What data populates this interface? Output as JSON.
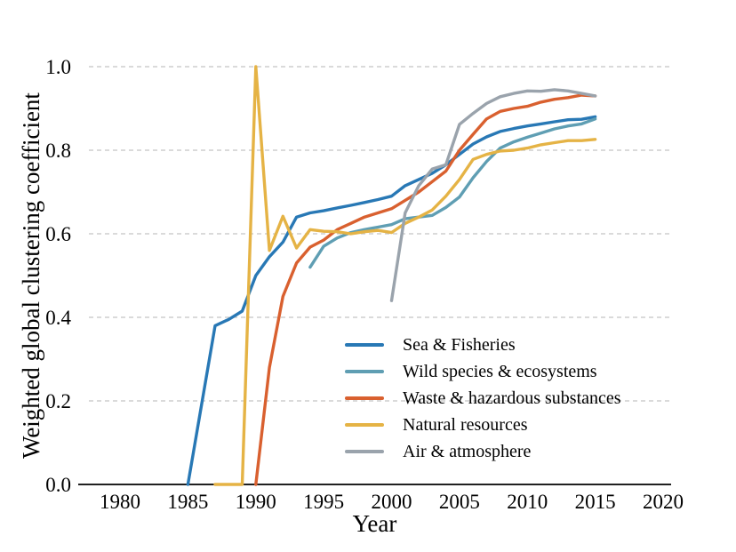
{
  "figure": {
    "background": "#ffffff"
  },
  "chart_data": {
    "type": "line",
    "title": "",
    "xlabel": "Year",
    "ylabel": "Weighted global clustering coefficient",
    "x_ticks": [
      1980,
      1985,
      1990,
      1995,
      2000,
      2005,
      2010,
      2015,
      2020
    ],
    "y_ticks": [
      0.0,
      0.2,
      0.4,
      0.6,
      0.8,
      1.0
    ],
    "y_tick_labels": [
      "0.0",
      "0.2",
      "0.4",
      "0.6",
      "0.8",
      "1.0"
    ],
    "xlim": [
      1976.92,
      2020.59
    ],
    "ylim": [
      0.0,
      1.0
    ],
    "grid": "horizontal-dashed",
    "grid_color": "#c4c4c4",
    "legend_position": "lower-right-inside",
    "series": [
      {
        "id": "sea-fisheries",
        "name": "Sea & Fisheries",
        "color": "#2878b5",
        "points": [
          [
            1985,
            0.0
          ],
          [
            1986,
            0.19
          ],
          [
            1987,
            0.38
          ],
          [
            1988,
            0.395
          ],
          [
            1989,
            0.415
          ],
          [
            1990,
            0.5
          ],
          [
            1991,
            0.545
          ],
          [
            1992,
            0.58
          ],
          [
            1993,
            0.64
          ],
          [
            1994,
            0.65
          ],
          [
            1995,
            0.655
          ],
          [
            1996,
            0.662
          ],
          [
            1997,
            0.668
          ],
          [
            1998,
            0.675
          ],
          [
            1999,
            0.682
          ],
          [
            2000,
            0.69
          ],
          [
            2001,
            0.715
          ],
          [
            2002,
            0.73
          ],
          [
            2003,
            0.745
          ],
          [
            2004,
            0.765
          ],
          [
            2005,
            0.79
          ],
          [
            2006,
            0.815
          ],
          [
            2007,
            0.832
          ],
          [
            2008,
            0.845
          ],
          [
            2009,
            0.852
          ],
          [
            2010,
            0.858
          ],
          [
            2011,
            0.863
          ],
          [
            2012,
            0.868
          ],
          [
            2013,
            0.873
          ],
          [
            2014,
            0.874
          ],
          [
            2015,
            0.88
          ]
        ]
      },
      {
        "id": "wild-species-ecosystems",
        "name": "Wild species & ecosystems",
        "color": "#5f9eb3",
        "points": [
          [
            1994,
            0.52
          ],
          [
            1995,
            0.57
          ],
          [
            1996,
            0.59
          ],
          [
            1997,
            0.603
          ],
          [
            1998,
            0.61
          ],
          [
            1999,
            0.616
          ],
          [
            2000,
            0.622
          ],
          [
            2001,
            0.636
          ],
          [
            2002,
            0.64
          ],
          [
            2003,
            0.644
          ],
          [
            2004,
            0.663
          ],
          [
            2005,
            0.688
          ],
          [
            2006,
            0.734
          ],
          [
            2007,
            0.773
          ],
          [
            2008,
            0.805
          ],
          [
            2009,
            0.82
          ],
          [
            2010,
            0.831
          ],
          [
            2011,
            0.841
          ],
          [
            2012,
            0.851
          ],
          [
            2013,
            0.858
          ],
          [
            2014,
            0.863
          ],
          [
            2015,
            0.875
          ]
        ]
      },
      {
        "id": "waste-hazardous-substances",
        "name": "Waste & hazardous substances",
        "color": "#d9602f",
        "points": [
          [
            1990,
            0.0
          ],
          [
            1991,
            0.28
          ],
          [
            1992,
            0.45
          ],
          [
            1993,
            0.53
          ],
          [
            1994,
            0.568
          ],
          [
            1995,
            0.585
          ],
          [
            1996,
            0.61
          ],
          [
            1997,
            0.625
          ],
          [
            1998,
            0.64
          ],
          [
            1999,
            0.65
          ],
          [
            2000,
            0.66
          ],
          [
            2001,
            0.68
          ],
          [
            2002,
            0.7
          ],
          [
            2003,
            0.725
          ],
          [
            2004,
            0.75
          ],
          [
            2005,
            0.8
          ],
          [
            2006,
            0.838
          ],
          [
            2007,
            0.875
          ],
          [
            2008,
            0.893
          ],
          [
            2009,
            0.9
          ],
          [
            2010,
            0.905
          ],
          [
            2011,
            0.915
          ],
          [
            2012,
            0.922
          ],
          [
            2013,
            0.926
          ],
          [
            2014,
            0.932
          ],
          [
            2015,
            0.93
          ]
        ]
      },
      {
        "id": "natural-resources",
        "name": "Natural resources",
        "color": "#e5b345",
        "points": [
          [
            1987,
            0.0
          ],
          [
            1988,
            0.0
          ],
          [
            1989,
            0.0
          ],
          [
            1990,
            1.0
          ],
          [
            1991,
            0.56
          ],
          [
            1992,
            0.642
          ],
          [
            1993,
            0.566
          ],
          [
            1994,
            0.61
          ],
          [
            1995,
            0.606
          ],
          [
            1996,
            0.605
          ],
          [
            1997,
            0.6
          ],
          [
            1998,
            0.605
          ],
          [
            1999,
            0.608
          ],
          [
            2000,
            0.603
          ],
          [
            2001,
            0.625
          ],
          [
            2002,
            0.64
          ],
          [
            2003,
            0.657
          ],
          [
            2004,
            0.69
          ],
          [
            2005,
            0.73
          ],
          [
            2006,
            0.778
          ],
          [
            2007,
            0.79
          ],
          [
            2008,
            0.798
          ],
          [
            2009,
            0.8
          ],
          [
            2010,
            0.805
          ],
          [
            2011,
            0.813
          ],
          [
            2012,
            0.818
          ],
          [
            2013,
            0.823
          ],
          [
            2014,
            0.823
          ],
          [
            2015,
            0.826
          ]
        ]
      },
      {
        "id": "air-atmosphere",
        "name": "Air & atmosphere",
        "color": "#9aa3ac",
        "points": [
          [
            2000,
            0.44
          ],
          [
            2001,
            0.65
          ],
          [
            2002,
            0.715
          ],
          [
            2003,
            0.755
          ],
          [
            2004,
            0.765
          ],
          [
            2005,
            0.862
          ],
          [
            2006,
            0.888
          ],
          [
            2007,
            0.912
          ],
          [
            2008,
            0.928
          ],
          [
            2009,
            0.936
          ],
          [
            2010,
            0.942
          ],
          [
            2011,
            0.941
          ],
          [
            2012,
            0.945
          ],
          [
            2013,
            0.942
          ],
          [
            2014,
            0.936
          ],
          [
            2015,
            0.93
          ]
        ]
      }
    ]
  }
}
